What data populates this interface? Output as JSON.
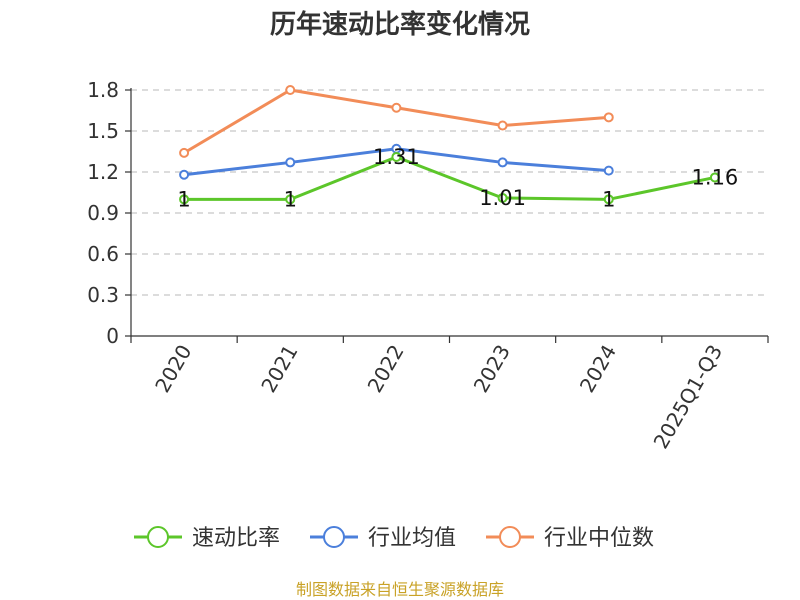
{
  "chart_data": {
    "type": "line",
    "title": "历年速动比率变化情况",
    "categories": [
      "2020",
      "2021",
      "2022",
      "2023",
      "2024",
      "2025Q1-Q3"
    ],
    "y_ticks": [
      "0",
      "0.3",
      "0.6",
      "0.9",
      "1.2",
      "1.5",
      "1.8"
    ],
    "ylim": [
      0,
      1.8
    ],
    "grid": true,
    "legend_position": "bottom",
    "series": [
      {
        "name": "速动比率",
        "color": "#5cc62a",
        "values": [
          1,
          1,
          1.31,
          1.01,
          1,
          1.16
        ],
        "labels": [
          "1",
          "1",
          "1.31",
          "1.01",
          "1",
          "1.16"
        ]
      },
      {
        "name": "行业均值",
        "color": "#4b7fdb",
        "values": [
          1.18,
          1.27,
          1.37,
          1.27,
          1.21,
          null
        ]
      },
      {
        "name": "行业中位数",
        "color": "#f28c58",
        "values": [
          1.34,
          1.8,
          1.67,
          1.54,
          1.6,
          null
        ]
      }
    ]
  },
  "source": "制图数据来自恒生聚源数据库"
}
